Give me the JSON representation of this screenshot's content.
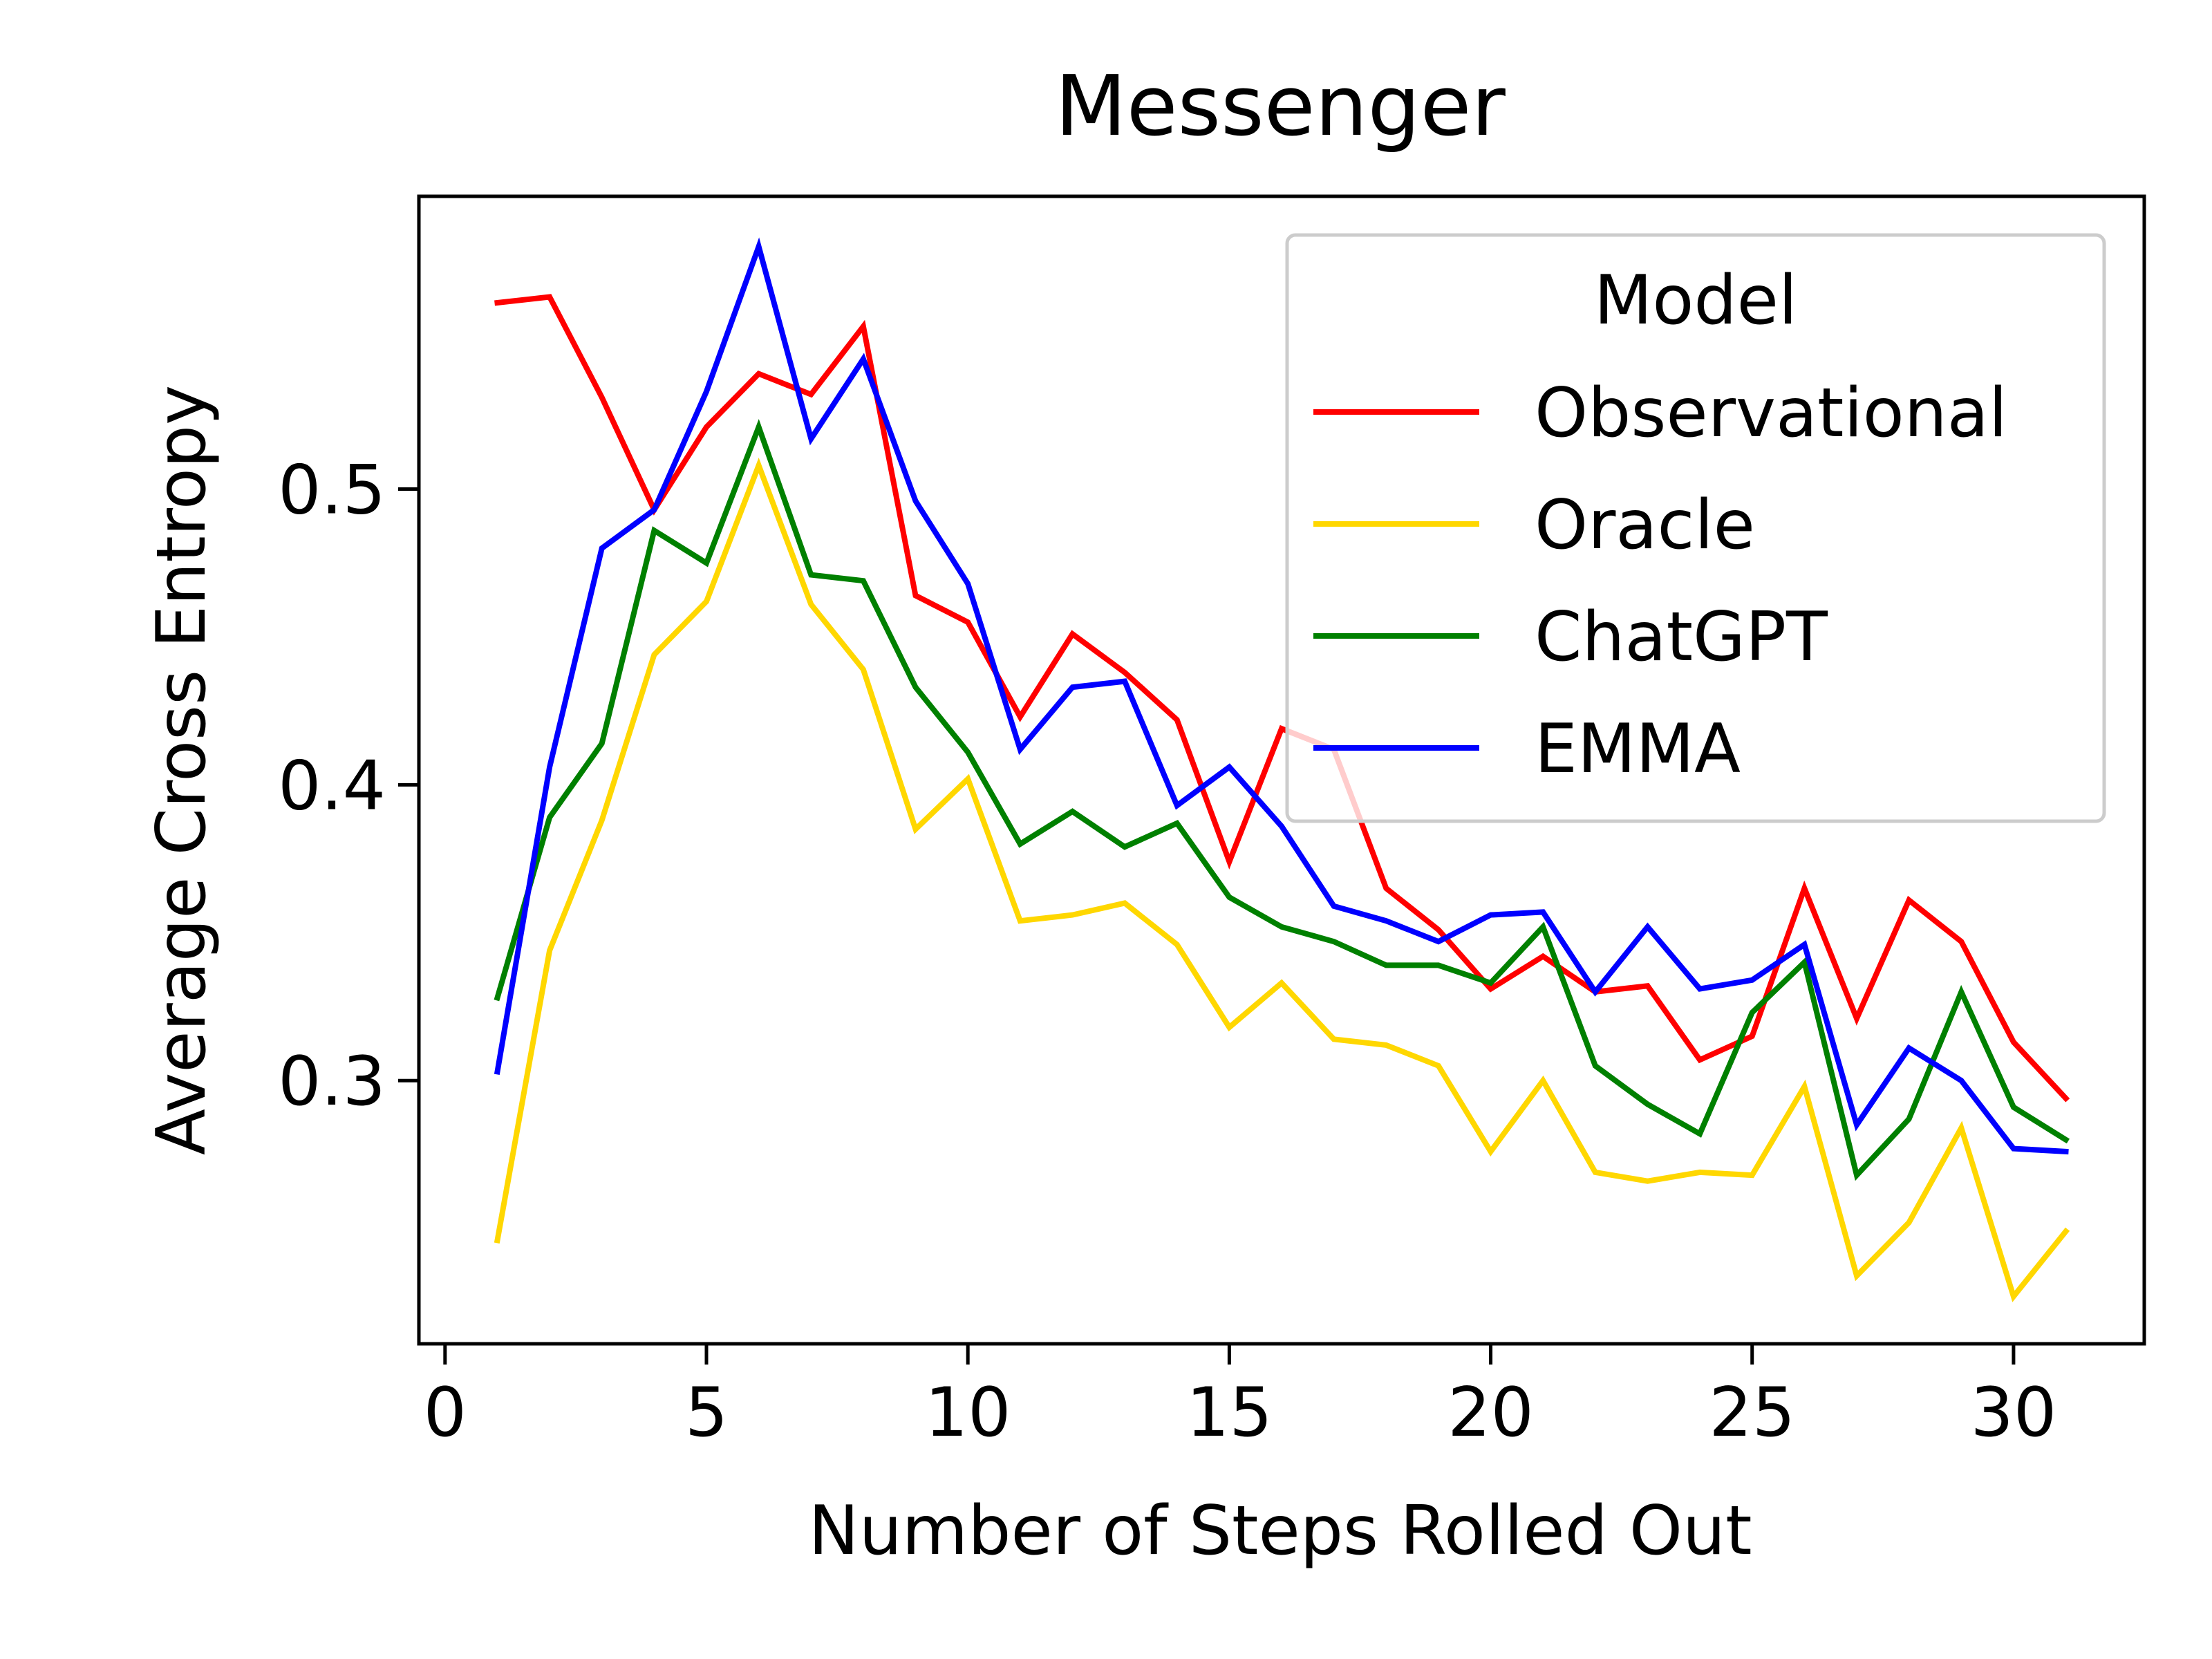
{
  "chart_data": {
    "type": "line",
    "title": "Messenger",
    "xlabel": "Number of Steps Rolled Out",
    "ylabel": "Average Cross Entropy",
    "xlim": [
      -0.5,
      32.5
    ],
    "ylim": [
      0.211,
      0.599
    ],
    "xticks": [
      0,
      5,
      10,
      15,
      20,
      25,
      30
    ],
    "yticks": [
      0.3,
      0.4,
      0.5
    ],
    "ytick_labels": [
      "0.3",
      "0.4",
      "0.5"
    ],
    "grid": false,
    "legend": {
      "title": "Model",
      "position": "top-right"
    },
    "x": [
      1,
      2,
      3,
      4,
      5,
      6,
      7,
      8,
      9,
      10,
      11,
      12,
      13,
      14,
      15,
      16,
      17,
      18,
      19,
      20,
      21,
      22,
      23,
      24,
      25,
      26,
      27,
      28,
      29,
      30,
      31
    ],
    "series": [
      {
        "name": "Observational",
        "color": "#ff0000",
        "values": [
          0.563,
          0.565,
          0.531,
          0.493,
          0.521,
          0.539,
          0.532,
          0.555,
          0.464,
          0.455,
          0.423,
          0.451,
          0.438,
          0.422,
          0.374,
          0.419,
          0.412,
          0.365,
          0.351,
          0.331,
          0.342,
          0.33,
          0.332,
          0.307,
          0.315,
          0.365,
          0.321,
          0.361,
          0.347,
          0.313,
          0.294
        ]
      },
      {
        "name": "Oracle",
        "color": "#ffd700",
        "values": [
          0.246,
          0.344,
          0.388,
          0.444,
          0.462,
          0.508,
          0.461,
          0.439,
          0.385,
          0.402,
          0.354,
          0.356,
          0.36,
          0.346,
          0.318,
          0.333,
          0.314,
          0.312,
          0.305,
          0.276,
          0.3,
          0.269,
          0.266,
          0.269,
          0.268,
          0.298,
          0.234,
          0.252,
          0.284,
          0.227,
          0.249
        ]
      },
      {
        "name": "ChatGPT",
        "color": "#008000",
        "values": [
          0.328,
          0.389,
          0.414,
          0.486,
          0.475,
          0.521,
          0.471,
          0.469,
          0.433,
          0.411,
          0.38,
          0.391,
          0.379,
          0.387,
          0.362,
          0.352,
          0.347,
          0.339,
          0.339,
          0.333,
          0.352,
          0.305,
          0.292,
          0.282,
          0.323,
          0.34,
          0.268,
          0.287,
          0.33,
          0.291,
          0.28
        ]
      },
      {
        "name": "EMMA",
        "color": "#0000ff",
        "values": [
          0.303,
          0.406,
          0.48,
          0.493,
          0.533,
          0.582,
          0.517,
          0.544,
          0.496,
          0.468,
          0.412,
          0.433,
          0.435,
          0.393,
          0.406,
          0.386,
          0.359,
          0.354,
          0.347,
          0.356,
          0.357,
          0.33,
          0.352,
          0.331,
          0.334,
          0.346,
          0.285,
          0.311,
          0.3,
          0.277,
          0.276
        ]
      }
    ]
  }
}
